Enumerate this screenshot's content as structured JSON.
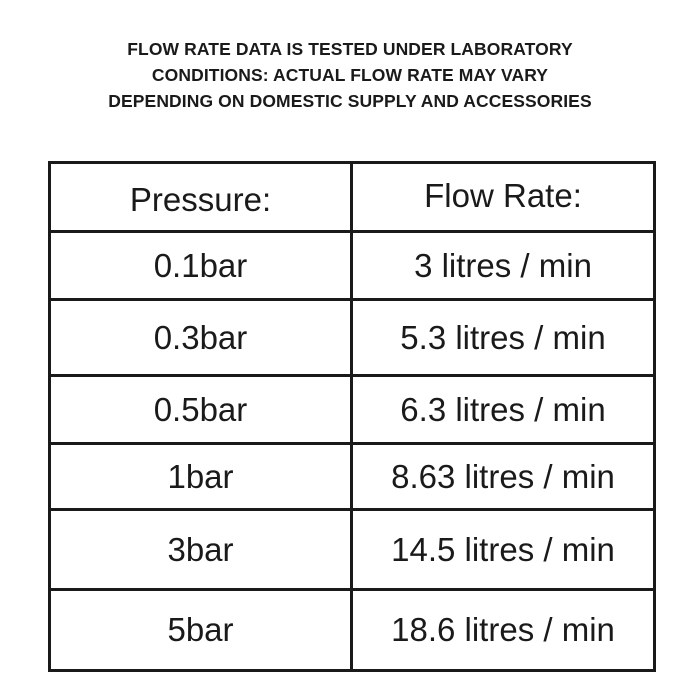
{
  "notice": {
    "line1": "FLOW RATE DATA IS TESTED UNDER LABORATORY",
    "line2": "CONDITIONS: ACTUAL FLOW RATE MAY VARY",
    "line3": "DEPENDING ON DOMESTIC SUPPLY AND ACCESSORIES"
  },
  "table": {
    "headers": [
      "Pressure:",
      "Flow Rate:"
    ],
    "rows": [
      [
        "0.1bar",
        "3 litres / min"
      ],
      [
        "0.3bar",
        "5.3 litres / min"
      ],
      [
        "0.5bar",
        "6.3 litres / min"
      ],
      [
        "1bar",
        "8.63 litres / min"
      ],
      [
        "3bar",
        "14.5 litres / min"
      ],
      [
        "5bar",
        "18.6 litres / min"
      ]
    ]
  },
  "colors": {
    "text": "#1a1a1a",
    "border": "#1a1a1a",
    "background": "#ffffff"
  }
}
